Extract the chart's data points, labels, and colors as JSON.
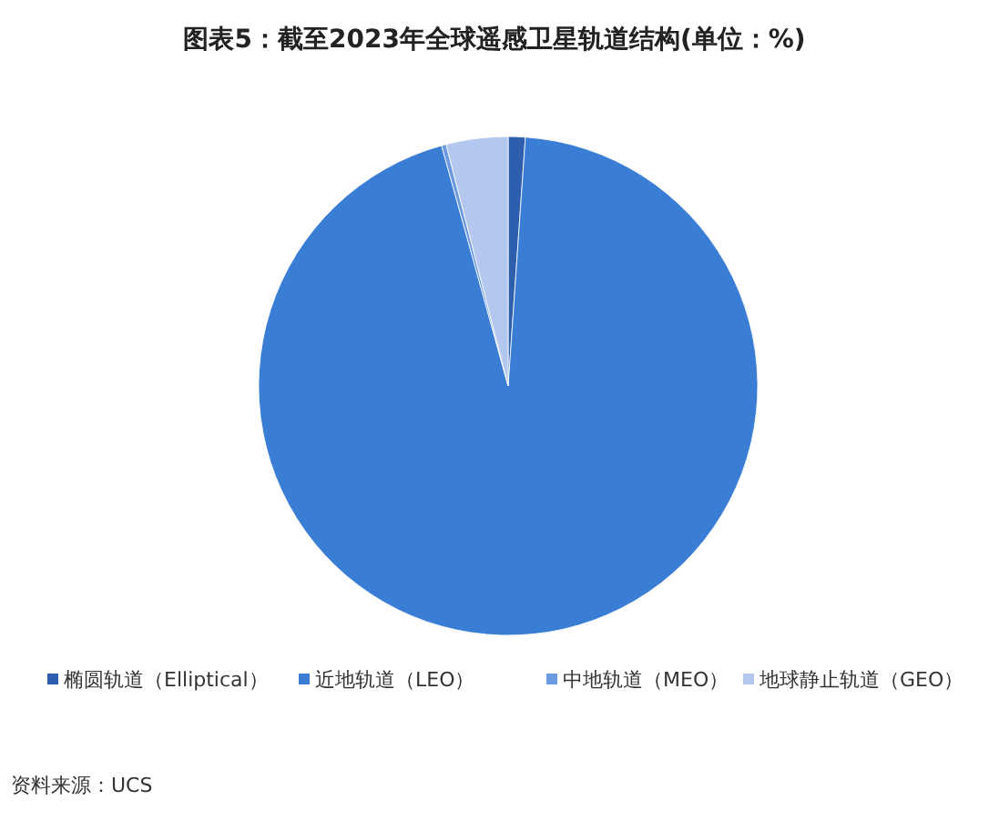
{
  "chart_data": {
    "type": "pie",
    "title": "图表5：截至2023年全球遥感卫星轨道结构(单位：%)",
    "categories": [
      "椭圆轨道（Elliptical）",
      "近地轨道（LEO）",
      "中地轨道（MEO）",
      "地球静止轨道（GEO）"
    ],
    "values": [
      1.1,
      94.6,
      0.3,
      4.0
    ],
    "colors": [
      "#2e5fae",
      "#3a7dd4",
      "#6b9ae0",
      "#b4c7ee"
    ],
    "legend": "bottom",
    "annotations": [
      "资料来源：UCS"
    ]
  }
}
